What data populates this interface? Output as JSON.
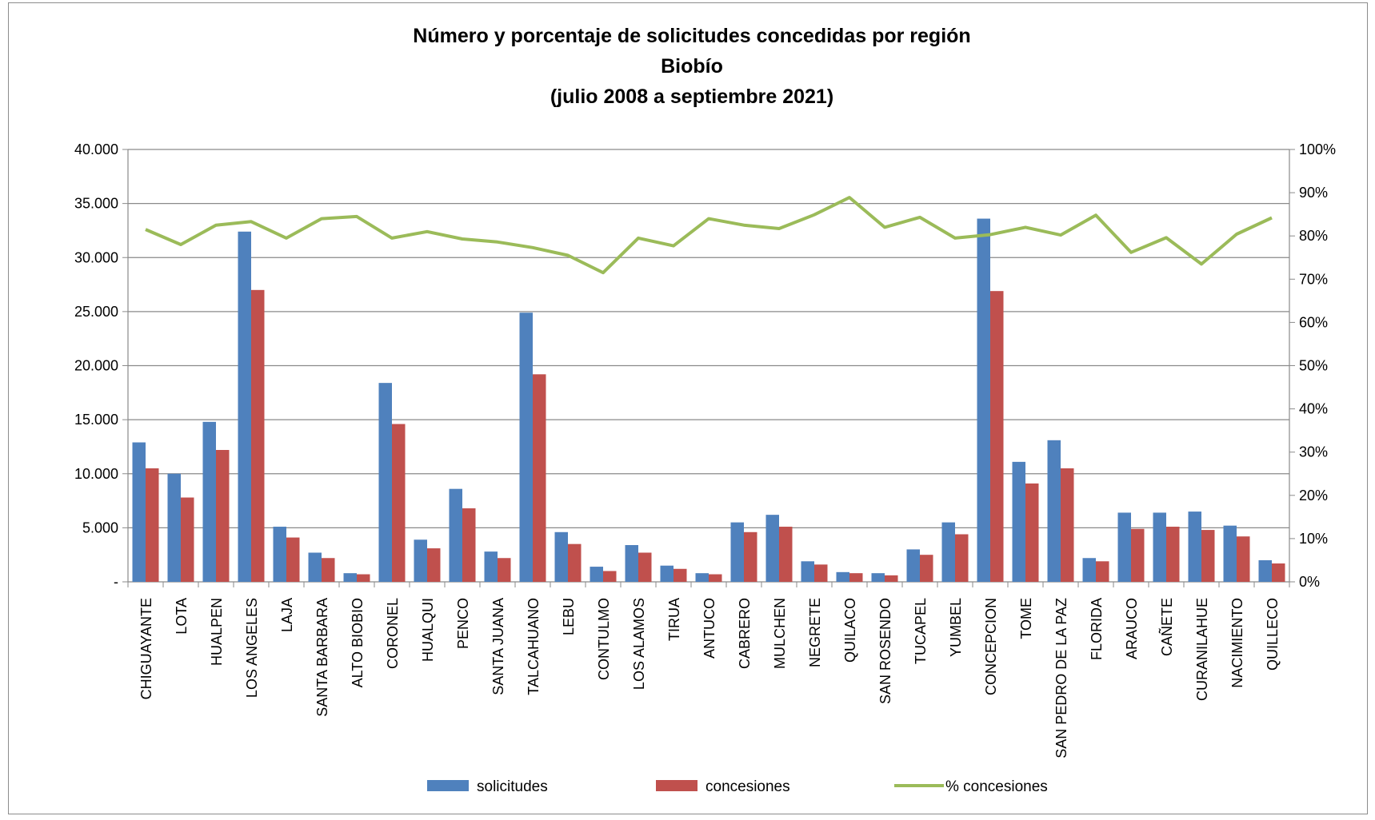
{
  "chart_data": {
    "type": "bar",
    "title": [
      "Número y porcentaje de solicitudes concedidas por región",
      "Biobío",
      "(julio 2008 a septiembre 2021)"
    ],
    "categories": [
      "CHIGUAYANTE",
      "LOTA",
      "HUALPEN",
      "LOS ANGELES",
      "LAJA",
      "SANTA BARBARA",
      "ALTO BIOBIO",
      "CORONEL",
      "HUALQUI",
      "PENCO",
      "SANTA JUANA",
      "TALCAHUANO",
      "LEBU",
      "CONTULMO",
      "LOS ALAMOS",
      "TIRUA",
      "ANTUCO",
      "CABRERO",
      "MULCHEN",
      "NEGRETE",
      "QUILACO",
      "SAN ROSENDO",
      "TUCAPEL",
      "YUMBEL",
      "CONCEPCION",
      "TOME",
      "SAN PEDRO DE LA PAZ",
      "FLORIDA",
      "ARAUCO",
      "CAÑETE",
      "CURANILAHUE",
      "NACIMIENTO",
      "QUILLECO"
    ],
    "series": [
      {
        "name": "solicitudes",
        "axis": "left",
        "kind": "bar",
        "color": "#4f81bd",
        "values": [
          12900,
          10000,
          14800,
          32400,
          5100,
          2700,
          800,
          18400,
          3900,
          8600,
          2800,
          24900,
          4600,
          1400,
          3400,
          1500,
          800,
          5500,
          6200,
          1900,
          900,
          800,
          3000,
          5500,
          33600,
          11100,
          13100,
          2200,
          6400,
          6400,
          6500,
          5200,
          2000
        ]
      },
      {
        "name": "concesiones",
        "axis": "left",
        "kind": "bar",
        "color": "#c0504d",
        "values": [
          10500,
          7800,
          12200,
          27000,
          4100,
          2200,
          700,
          14600,
          3100,
          6800,
          2200,
          19200,
          3500,
          1000,
          2700,
          1200,
          700,
          4600,
          5100,
          1600,
          800,
          600,
          2500,
          4400,
          26900,
          9100,
          10500,
          1900,
          4900,
          5100,
          4800,
          4200,
          1700
        ]
      },
      {
        "name": "% concesiones",
        "axis": "right",
        "kind": "line",
        "color": "#9bbb59",
        "values": [
          81.5,
          78.0,
          82.5,
          83.3,
          79.5,
          84.0,
          84.5,
          79.5,
          81.0,
          79.3,
          78.6,
          77.3,
          75.5,
          71.5,
          79.5,
          77.7,
          84.0,
          82.5,
          81.7,
          84.9,
          88.9,
          82.0,
          84.3,
          79.5,
          80.3,
          82.0,
          80.2,
          84.8,
          76.2,
          79.6,
          73.5,
          80.4,
          84.2
        ]
      }
    ],
    "yleft": {
      "min": 0,
      "max": 40000,
      "ticks": [
        "-",
        "5.000",
        "10.000",
        "15.000",
        "20.000",
        "25.000",
        "30.000",
        "35.000",
        "40.000"
      ]
    },
    "yright": {
      "min": 0,
      "max": 100,
      "ticks": [
        "0%",
        "10%",
        "20%",
        "30%",
        "40%",
        "50%",
        "60%",
        "70%",
        "80%",
        "90%",
        "100%"
      ]
    },
    "grid": true,
    "legend_position": "bottom"
  }
}
